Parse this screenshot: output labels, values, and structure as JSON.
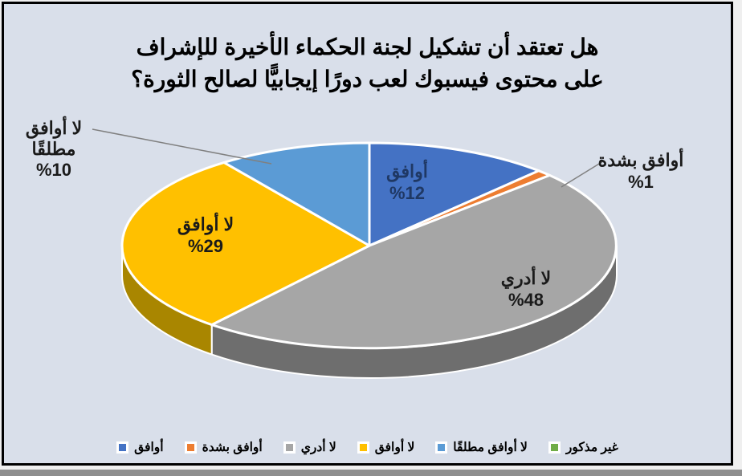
{
  "chart_data": {
    "type": "pie",
    "style": "3d-exploded-pie",
    "title_line1": "هل تعتقد أن تشكيل لجنة الحكماء الأخيرة للإشراف",
    "title_line2": "على محتوى فيسبوك لعب دورًا إيجابيًّا لصالح الثورة؟",
    "legend_position": "bottom",
    "background_color": "#D9DFEA",
    "categories": [
      "أوافق",
      "أوافق بشدة",
      "لا أدري",
      "لا أوافق",
      "لا أوافق مطلقًا",
      "غير مذكور"
    ],
    "values": [
      12,
      1,
      48,
      29,
      10,
      0
    ],
    "slices": [
      {
        "key": "agree",
        "label": "أوافق",
        "value": 12,
        "pct_label": "%12",
        "color": "#4472C4",
        "side_color": "#2F55A4",
        "label_color": "#1F3864"
      },
      {
        "key": "strongly-agree",
        "label": "أوافق بشدة",
        "value": 1,
        "pct_label": "%1",
        "color": "#ED7D31",
        "side_color": "#C55A11",
        "label_color": "#1a1a1a"
      },
      {
        "key": "dont-know",
        "label": "لا أدري",
        "value": 48,
        "pct_label": "%48",
        "color": "#A6A6A6",
        "side_color": "#6E6E6E",
        "label_color": "#1a1a1a"
      },
      {
        "key": "disagree",
        "label": "لا أوافق",
        "value": 29,
        "pct_label": "%29",
        "color": "#FFC000",
        "side_color": "#A98600",
        "label_color": "#1a1a1a"
      },
      {
        "key": "absolutely-disagree",
        "label": "لا أوافق مطلقًا",
        "label_line1": "لا أوافق",
        "label_line2": "مطلقًا",
        "value": 10,
        "pct_label": "%10",
        "color": "#5B9BD5",
        "side_color": "#3579B1",
        "label_color": "#1a1a1a"
      },
      {
        "key": "not-mentioned",
        "label": "غير مذكور",
        "value": 0,
        "pct_label": "",
        "color": "#70AD47",
        "side_color": "#548235",
        "label_color": "#1a1a1a"
      }
    ]
  }
}
